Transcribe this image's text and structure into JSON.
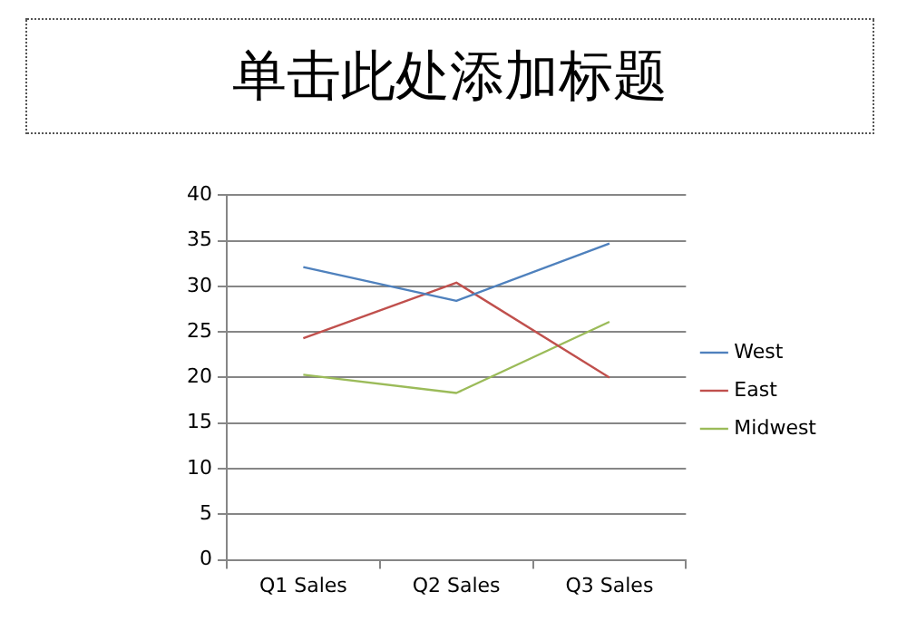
{
  "chart_data": {
    "type": "line",
    "title": "单击此处添加标题",
    "categories": [
      "Q1 Sales",
      "Q2 Sales",
      "Q3 Sales"
    ],
    "series": [
      {
        "name": "West",
        "color": "#4f81bd",
        "values": [
          32.1,
          28.4,
          34.7
        ]
      },
      {
        "name": "East",
        "color": "#c0504d",
        "values": [
          24.3,
          30.4,
          20
        ]
      },
      {
        "name": "Midwest",
        "color": "#9bbb59",
        "values": [
          20.3,
          18.3,
          26.1
        ]
      }
    ],
    "ylim": [
      0,
      40
    ],
    "yticks": [
      0,
      5,
      10,
      15,
      20,
      25,
      30,
      35,
      40
    ],
    "grid": "y",
    "legend": "right",
    "marker": "none",
    "line_style": "solid"
  }
}
